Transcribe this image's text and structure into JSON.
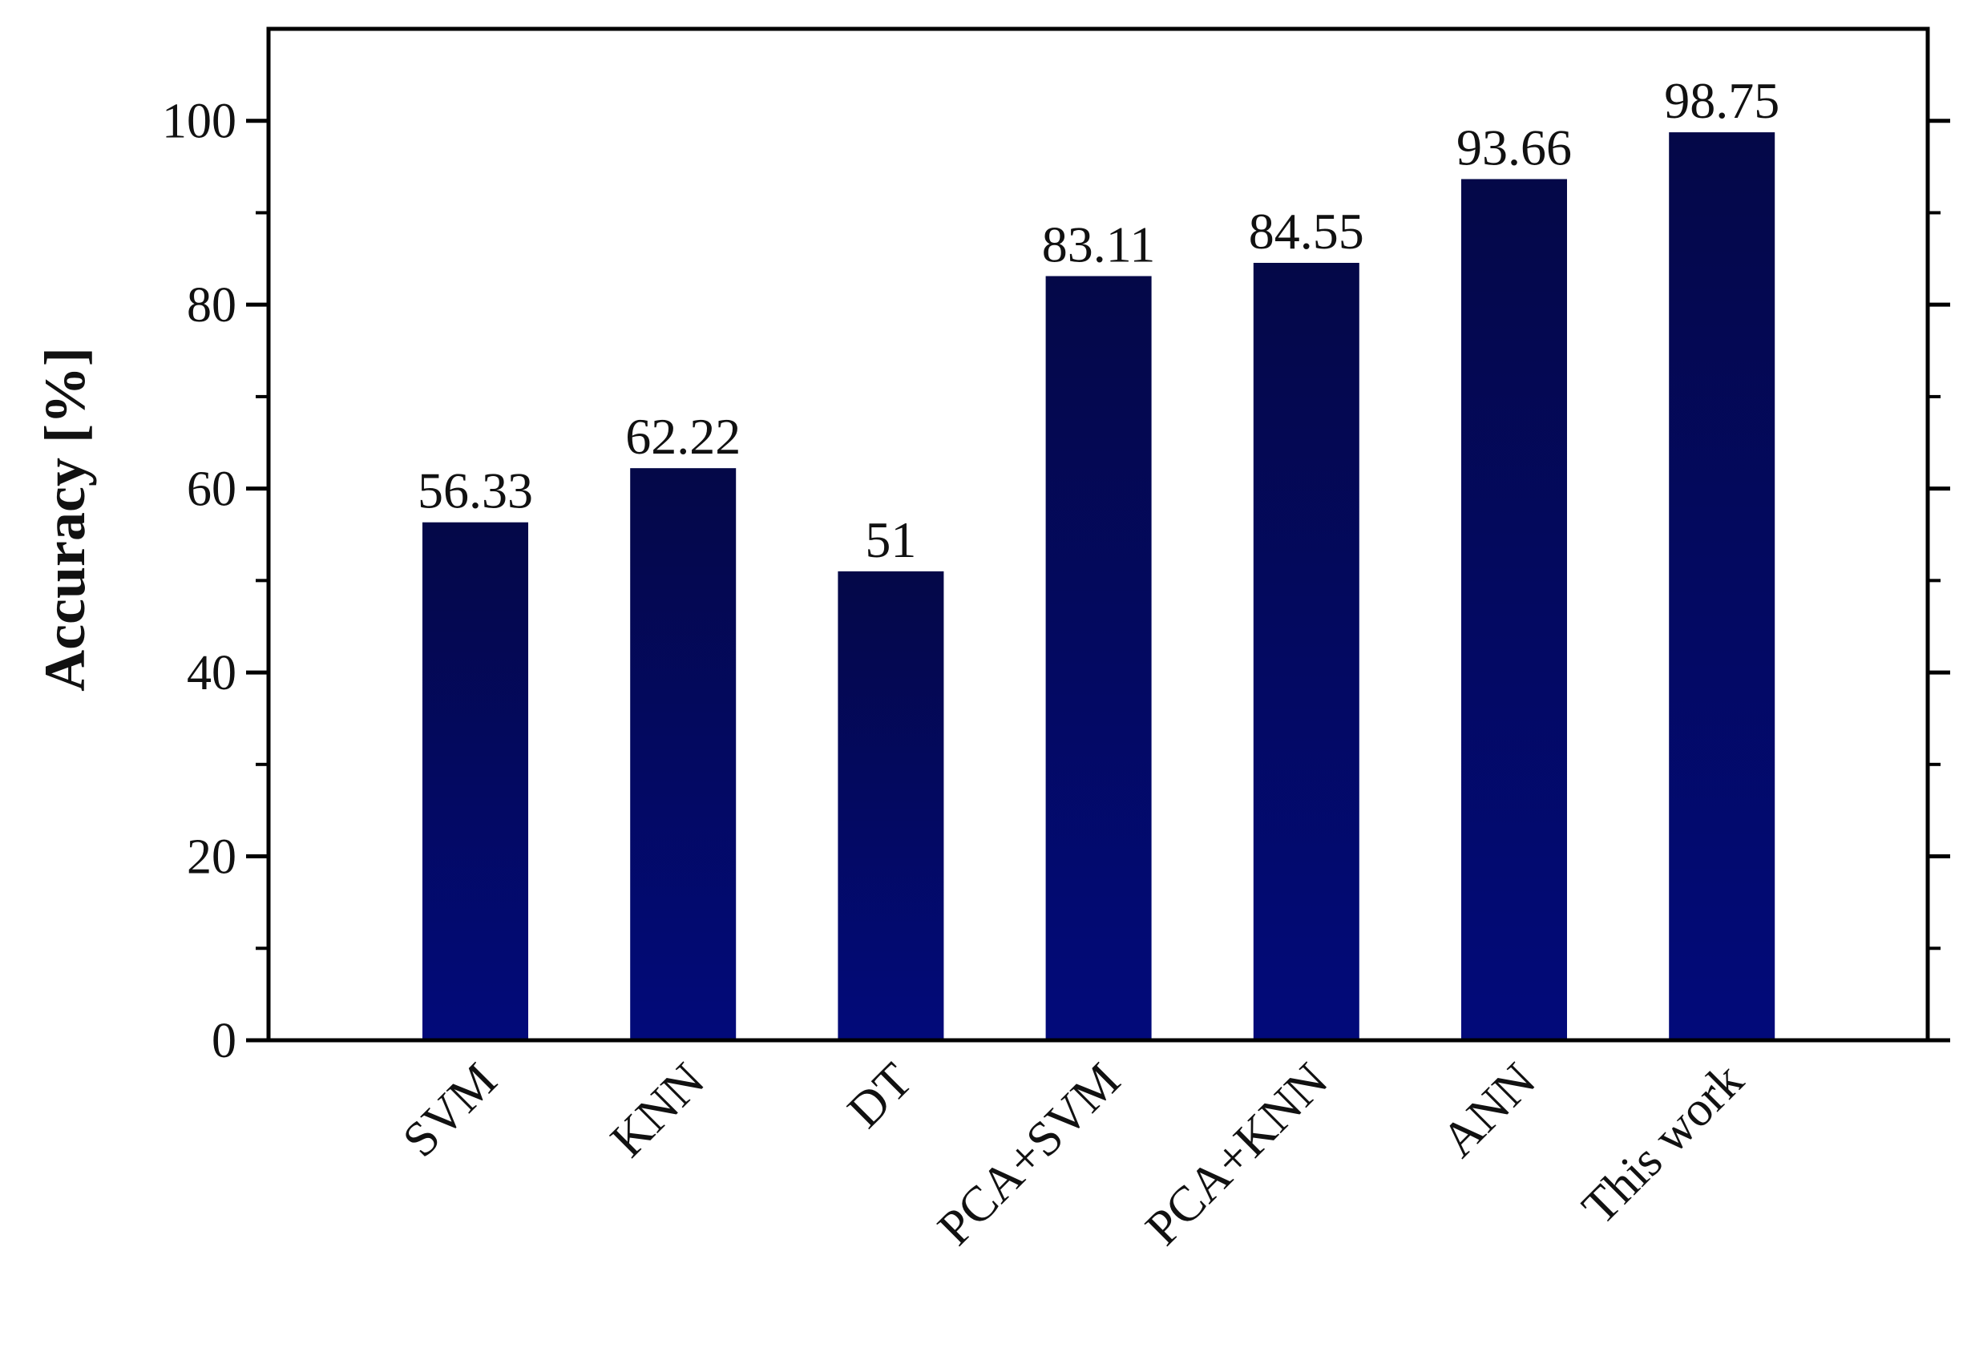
{
  "chart_data": {
    "type": "bar",
    "title": "",
    "xlabel": "",
    "ylabel": "Accuracy [%]",
    "categories": [
      "SVM",
      "KNN",
      "DT",
      "PCA+SVM",
      "PCA+KNN",
      "ANN",
      "This work"
    ],
    "values": [
      56.33,
      62.22,
      51,
      83.11,
      84.55,
      93.66,
      98.75
    ],
    "value_labels": [
      "56.33",
      "62.22",
      "51",
      "83.11",
      "84.55",
      "93.66",
      "98.75"
    ],
    "ylim": [
      0,
      110
    ],
    "yticks": [
      0,
      20,
      40,
      60,
      80,
      100
    ],
    "ytick_labels": [
      "0",
      "20",
      "40",
      "60",
      "80",
      "100"
    ],
    "yminor_step": 10,
    "grid": false,
    "legend": "none",
    "bar_gradient": [
      "#040848",
      "#020a7a"
    ],
    "axis_color": "#000000"
  }
}
